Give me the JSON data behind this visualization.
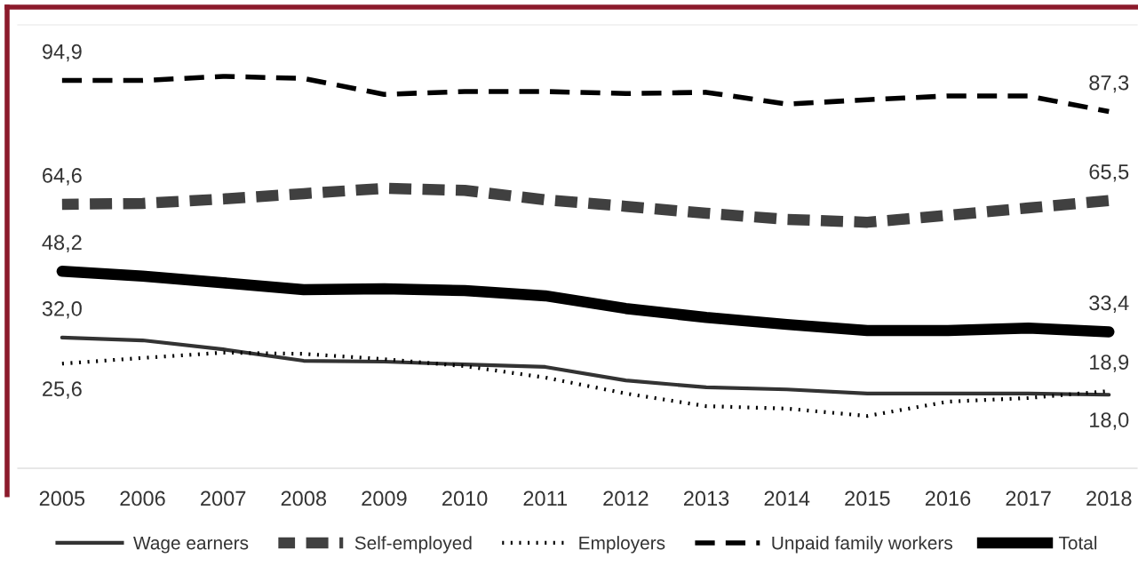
{
  "chart_data": {
    "type": "line",
    "categories": [
      "2005",
      "2006",
      "2007",
      "2008",
      "2009",
      "2010",
      "2011",
      "2012",
      "2013",
      "2014",
      "2015",
      "2016",
      "2017",
      "2018"
    ],
    "ylim": [
      0,
      108.5
    ],
    "tick_labels": "x",
    "grid": false,
    "legend": "bottom",
    "marker": "none",
    "series": [
      {
        "name": "Wage earners",
        "color": "#333333",
        "line_style": "solid",
        "values": [
          32.0,
          31.3,
          29.1,
          26.3,
          26.1,
          25.4,
          24.8,
          21.5,
          19.8,
          19.3,
          18.3,
          18.3,
          18.3,
          18.0
        ],
        "value_labels": [
          "32,0",
          null,
          null,
          null,
          null,
          null,
          null,
          null,
          null,
          null,
          null,
          null,
          null,
          "18,0"
        ]
      },
      {
        "name": "Self-employed",
        "color": "#404040",
        "line_style": "dashed",
        "values": [
          64.6,
          64.8,
          65.9,
          67.2,
          68.5,
          68.0,
          65.7,
          64.1,
          62.4,
          60.9,
          60.2,
          61.9,
          63.7,
          65.5
        ],
        "value_labels": [
          "64,6",
          null,
          null,
          null,
          null,
          null,
          null,
          null,
          null,
          null,
          null,
          null,
          null,
          "65,5"
        ]
      },
      {
        "name": "Employers",
        "color": "#000000",
        "line_style": "dotted",
        "values": [
          25.6,
          27.0,
          28.3,
          28.0,
          26.7,
          25.0,
          22.2,
          18.3,
          15.2,
          14.6,
          12.8,
          16.3,
          17.2,
          18.9
        ],
        "value_labels": [
          "25,6",
          null,
          null,
          null,
          null,
          null,
          null,
          null,
          null,
          null,
          null,
          null,
          null,
          "18,9"
        ]
      },
      {
        "name": "Unpaid family workers",
        "color": "#000000",
        "line_style": "dashed",
        "values": [
          94.9,
          94.9,
          95.9,
          95.4,
          91.5,
          92.2,
          92.2,
          91.7,
          92.0,
          89.1,
          90.2,
          91.1,
          91.1,
          87.3
        ],
        "value_labels": [
          "94,9",
          null,
          null,
          null,
          null,
          null,
          null,
          null,
          null,
          null,
          null,
          null,
          null,
          "87,3"
        ]
      },
      {
        "name": "Total",
        "color": "#000000",
        "line_style": "solid",
        "values": [
          48.2,
          47.0,
          45.4,
          43.7,
          43.9,
          43.5,
          42.2,
          39.1,
          36.9,
          35.2,
          33.7,
          33.7,
          34.3,
          33.4
        ],
        "value_labels": [
          "48,2",
          null,
          null,
          null,
          null,
          null,
          null,
          null,
          null,
          null,
          null,
          null,
          null,
          "33,4"
        ]
      }
    ]
  }
}
